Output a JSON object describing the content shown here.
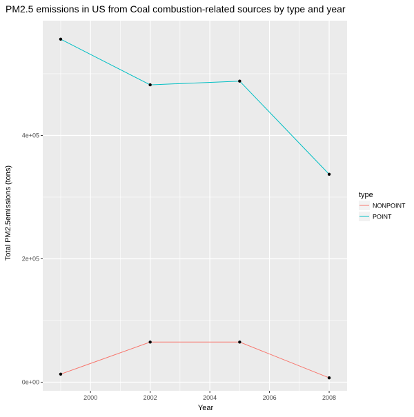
{
  "chart_data": {
    "type": "line",
    "title": "PM2.5 emissions in US from Coal combustion-related sources by type and year",
    "xlabel": "Year",
    "ylabel": "Total PM2.5emissions (tons)",
    "xlim": [
      1998.4,
      2008.6
    ],
    "ylim": [
      -14000,
      586000
    ],
    "x_ticks": [
      2000,
      2002,
      2004,
      2006,
      2008
    ],
    "x_tick_labels": [
      "2000",
      "2002",
      "2004",
      "2006",
      "2008"
    ],
    "y_ticks": [
      0,
      200000,
      400000
    ],
    "y_tick_labels": [
      "0e+00",
      "2e+05",
      "4e+05"
    ],
    "grid": true,
    "legend": {
      "title": "type",
      "position": "right"
    },
    "series": [
      {
        "name": "NONPOINT",
        "color": "#F8766D",
        "x": [
          1999,
          2002,
          2005,
          2008
        ],
        "y": [
          13000,
          65000,
          65000,
          7000
        ]
      },
      {
        "name": "POINT",
        "color": "#00BFC4",
        "x": [
          1999,
          2002,
          2005,
          2008
        ],
        "y": [
          556000,
          482000,
          488000,
          337000
        ]
      }
    ],
    "point_color": "#000000",
    "panel_background": "#EBEBEB",
    "grid_color": "#FFFFFF"
  }
}
